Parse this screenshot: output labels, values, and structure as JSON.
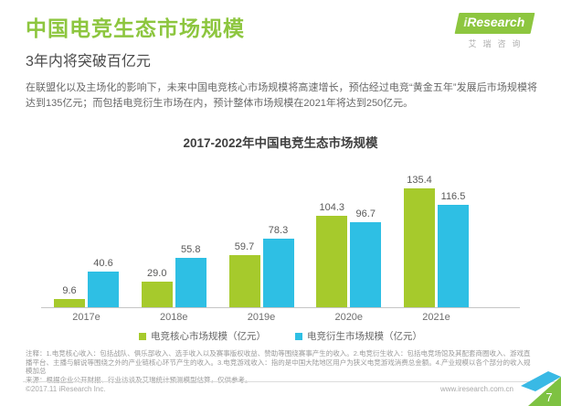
{
  "header": {
    "title": "中国电竞生态市场规模",
    "subtitle": "3年内将突破百亿元",
    "logo": {
      "brand_i": "i",
      "brand": "Research",
      "brand_cn": "艾瑞咨询"
    }
  },
  "description": "在联盟化以及主场化的影响下，未来中国电竞核心市场规模将高速增长，预估经过电竞“黄金五年”发展后市场规模将达到135亿元；而包括电竞衍生市场在内，预计整体市场规模在2021年将达到250亿元。",
  "chart_data": {
    "type": "bar",
    "title": "2017-2022年中国电竞生态市场规模",
    "categories": [
      "2017e",
      "2018e",
      "2019e",
      "2020e",
      "2021e"
    ],
    "series": [
      {
        "name": "电竞核心市场规模（亿元）",
        "color": "#a6ca2c",
        "values": [
          9.6,
          29.0,
          59.7,
          104.3,
          135.4
        ],
        "labels": [
          "9.6",
          "29.0",
          "59.7",
          "104.3",
          "135.4"
        ]
      },
      {
        "name": "电竞衍生市场规模（亿元）",
        "color": "#2ebfe4",
        "values": [
          40.6,
          55.8,
          78.3,
          96.7,
          116.5
        ],
        "labels": [
          "40.6",
          "55.8",
          "78.3",
          "96.7",
          "116.5"
        ]
      }
    ],
    "xlabel": "",
    "ylabel": "",
    "ylim": [
      0,
      150
    ],
    "grid": false,
    "legend_position": "bottom",
    "value_labels": true
  },
  "notes": {
    "annotation": "注释：1.电竞核心收入：包括战队、俱乐部收入、选手收入以及赛事版权收益、赞助等围绕赛事产生的收入。2.电竞衍生收入：包括电竞场馆及其配套商圈收入、游戏直播平台、主播与解说等围绕之外的产业链核心环节产生的收入。3.电竞游戏收入：指的是中国大陆地区用户为狭义电竞游戏消费总金额。4.产业规模以各个部分的收入规模加总",
    "source": "来源：根据企业公开财报、行业访谈及艾瑞统计预测模型估算，仅供参考。"
  },
  "footer": {
    "copyright": "©2017.11 iResearch Inc.",
    "website": "www.iresearch.com.cn",
    "page_number": "7"
  },
  "colors": {
    "title_green": "#8dc63f",
    "bar_green": "#a6ca2c",
    "bar_blue": "#2ebfe4"
  }
}
